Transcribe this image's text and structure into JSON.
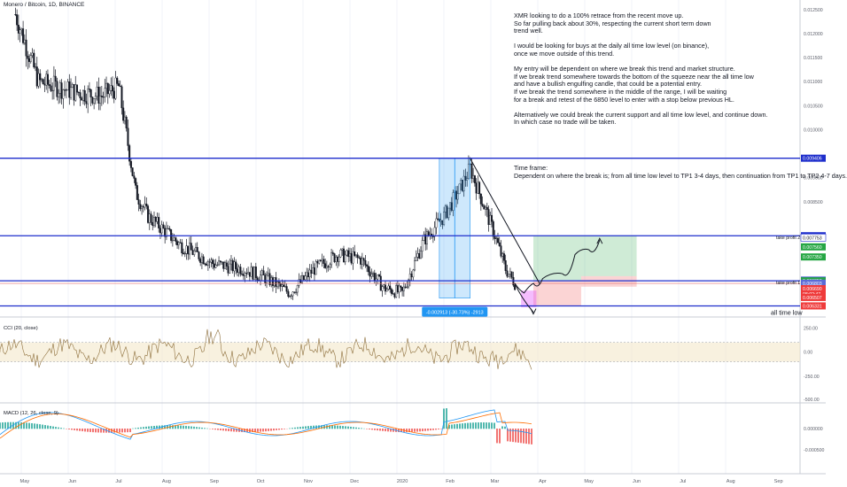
{
  "header": {
    "title": "Monero / Bitcoin, 1D, BINANCE"
  },
  "notes": {
    "analysis": [
      "XMR looking to do a 100% retrace from the recent move up.",
      "So far pulling back about 30%, respecting the current short term down",
      "trend well.",
      "",
      "I would be looking for buys at the daily all time low level (on binance),",
      "once we move outside of this trend.",
      "",
      "My entry will be dependent on where we break this trend and market structure.",
      "If we break trend somewhere towards the bottom of the squeeze near the all time low",
      "and have a bullish engulfing candle, that could be a potential entry.",
      "If we break the trend somewhere in the middle of the range, I will be waiting",
      "for a break and retest of the 6850 level to enter with a stop below previous HL.",
      "",
      "Alternatively we could break the current support and all time low level, and continue down.",
      "In which case no trade will be taken."
    ],
    "timeframe": [
      "Time frame:",
      "Dependent on where the break is; from all time low level to TP1 3-4 days, then continuation from TP1 to TP2 4-7 days."
    ]
  },
  "levels": {
    "resistance": 0.009406,
    "take_profit_2": 0.007792,
    "take_profit_1": 0.006853,
    "all_time_low": 0.006331
  },
  "labels": {
    "take_profit_2": "take profit 2",
    "take_profit_1": "take profit 1",
    "all_time_low": "all time low",
    "measure": "-0.002913 (-30.73%) -2913"
  },
  "price_tags": [
    {
      "text": "0.009406",
      "value": 0.009406,
      "color": "#1e2ecc"
    },
    {
      "text": "0.007792",
      "value": 0.007792,
      "color": "#1e2ecc"
    },
    {
      "text": "0.007753",
      "value": 0.007753,
      "color": "#ffffff",
      "text_color": "#131722"
    },
    {
      "text": "0.007560",
      "value": 0.00756,
      "color": "#26a644"
    },
    {
      "text": "0.007350",
      "value": 0.00735,
      "color": "#26a644"
    },
    {
      "text": "0.006865",
      "value": 0.006865,
      "color": "#1e2ecc"
    },
    {
      "text": "0.006853",
      "value": 0.006853,
      "color": "#26a644"
    },
    {
      "text": "0.006803",
      "value": 0.006803,
      "color": "#5b6bd6"
    },
    {
      "text": "0.006690",
      "value": 0.00669,
      "color": "#ef3b3b"
    },
    {
      "text": "08:02:47",
      "value": 0.00658,
      "color": "#ef3b3b"
    },
    {
      "text": "0.006507",
      "value": 0.006507,
      "color": "#ef3b3b"
    },
    {
      "text": "0.006331",
      "value": 0.006331,
      "color": "#ef3b3b"
    }
  ],
  "price_axis": [
    "0.012500",
    "0.012000",
    "0.011500",
    "0.011000",
    "0.010500",
    "0.010000",
    "0.009000",
    "0.008500"
  ],
  "time_axis": [
    "May",
    "Jun",
    "Jul",
    "Aug",
    "Sep",
    "Oct",
    "Nov",
    "Dec",
    "2020",
    "Feb",
    "Mar",
    "Apr",
    "May",
    "Jun",
    "Jul",
    "Aug",
    "Sep"
  ],
  "cci": {
    "title": "CCI (20, close)",
    "ticks": [
      "250.00",
      "0.00",
      "-250.00"
    ],
    "bottom_tick": "-500.00"
  },
  "macd": {
    "title": "MACD (12, 26, close, 9)",
    "ticks": [
      "0.000000",
      "-0.000500"
    ]
  },
  "colors": {
    "up": "#26a69a",
    "down": "#ef5350",
    "level": "#1e2ecc",
    "measure": "#2196f3",
    "profit": "#26a644",
    "loss": "#ef3b3b"
  },
  "chart_data": {
    "type": "candlestick",
    "title": "Monero / Bitcoin, 1D, BINANCE",
    "x_range": [
      "2019-04-15",
      "2020-09-15"
    ],
    "y_range": [
      0.0061,
      0.0127
    ],
    "price_path": [
      {
        "date": "2019-04-25",
        "close": 0.0124
      },
      {
        "date": "2019-05-10",
        "close": 0.011
      },
      {
        "date": "2019-06-01",
        "close": 0.0108
      },
      {
        "date": "2019-06-20",
        "close": 0.0107
      },
      {
        "date": "2019-07-01",
        "close": 0.0109
      },
      {
        "date": "2019-07-12",
        "close": 0.0087
      },
      {
        "date": "2019-07-20",
        "close": 0.0082
      },
      {
        "date": "2019-08-10",
        "close": 0.0076
      },
      {
        "date": "2019-09-01",
        "close": 0.0072
      },
      {
        "date": "2019-09-20",
        "close": 0.0071
      },
      {
        "date": "2019-10-05",
        "close": 0.0069
      },
      {
        "date": "2019-10-20",
        "close": 0.0066
      },
      {
        "date": "2019-11-05",
        "close": 0.0071
      },
      {
        "date": "2019-11-20",
        "close": 0.0074
      },
      {
        "date": "2019-12-05",
        "close": 0.0073
      },
      {
        "date": "2019-12-20",
        "close": 0.0067
      },
      {
        "date": "2020-01-01",
        "close": 0.0066
      },
      {
        "date": "2020-01-15",
        "close": 0.0077
      },
      {
        "date": "2020-01-28",
        "close": 0.0082
      },
      {
        "date": "2020-02-08",
        "close": 0.0088
      },
      {
        "date": "2020-02-14",
        "close": 0.0092
      },
      {
        "date": "2020-02-22",
        "close": 0.0085
      },
      {
        "date": "2020-03-01",
        "close": 0.0078
      },
      {
        "date": "2020-03-08",
        "close": 0.0071
      },
      {
        "date": "2020-03-14",
        "close": 0.0068
      }
    ],
    "projection_path": [
      {
        "date": "2020-03-14",
        "value": 0.0068
      },
      {
        "date": "2020-03-20",
        "value": 0.0066
      },
      {
        "date": "2020-03-26",
        "value": 0.0068
      },
      {
        "date": "2020-04-01",
        "value": 0.0069
      },
      {
        "date": "2020-04-14",
        "value": 0.007
      },
      {
        "date": "2020-04-22",
        "value": 0.0074
      },
      {
        "date": "2020-05-01",
        "value": 0.0075
      },
      {
        "date": "2020-05-08",
        "value": 0.0077
      }
    ],
    "bear_projection": [
      {
        "date": "2020-03-18",
        "value": 0.0065
      },
      {
        "date": "2020-03-26",
        "value": 0.0062
      }
    ],
    "measure": {
      "from_date": "2020-01-25",
      "to_date": "2020-02-14",
      "from": 0.009406,
      "to": 0.006493,
      "label": "-0.002913 (-30.73%) -2913"
    },
    "trendline": [
      {
        "date": "2020-02-14",
        "value": 0.0094
      },
      {
        "date": "2020-03-30",
        "value": 0.0068
      }
    ],
    "positions": [
      {
        "type": "long",
        "from_date": "2020-03-26",
        "to_date": "2020-04-26",
        "entry": 0.006853,
        "target": 0.007792,
        "stop": 0.006331
      },
      {
        "type": "long",
        "from_date": "2020-04-26",
        "to_date": "2020-06-01",
        "entry": 0.00695,
        "target": 0.007792,
        "stop": 0.00673
      }
    ]
  }
}
